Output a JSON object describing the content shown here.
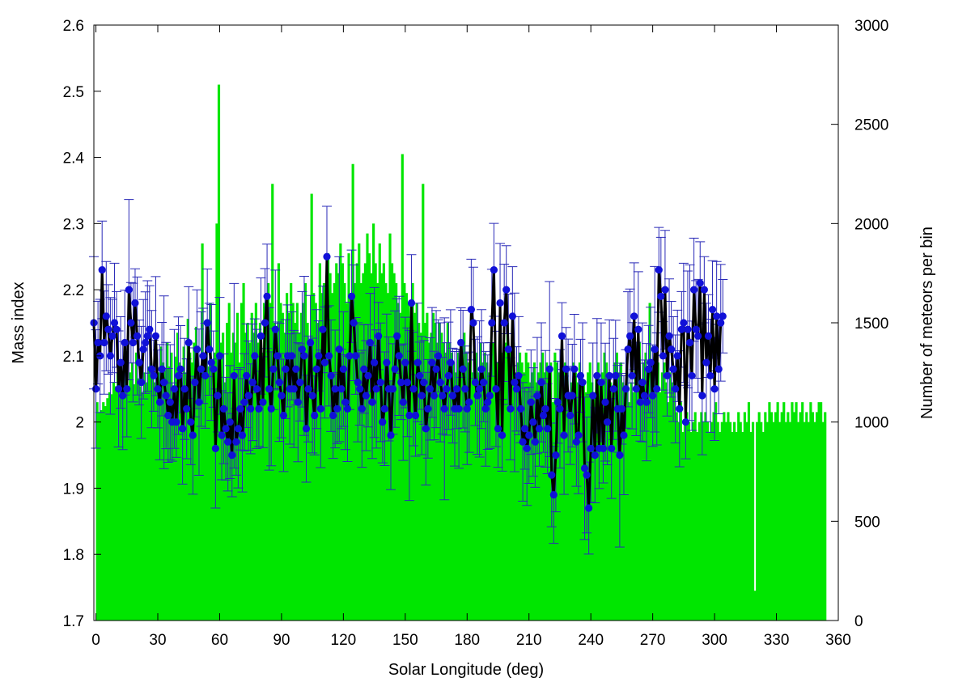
{
  "chart_data": {
    "type": "line",
    "xlabel": "Solar Longitude (deg)",
    "ylabel": "Mass index",
    "y2label": "Number of meteors per bin",
    "xlim": [
      -1,
      360
    ],
    "ylim": [
      1.7,
      2.6
    ],
    "y2lim": [
      0,
      3000
    ],
    "grid": false,
    "legend": "none",
    "xticks": [
      0,
      30,
      60,
      90,
      120,
      150,
      180,
      210,
      240,
      270,
      300,
      330,
      360
    ],
    "yticks": [
      1.7,
      1.8,
      1.9,
      2.0,
      2.1,
      2.2,
      2.3,
      2.4,
      2.5,
      2.6
    ],
    "y2ticks": [
      0,
      500,
      1000,
      1500,
      2000,
      2500,
      3000
    ],
    "colors": {
      "bars": "#00e600",
      "line": "#000000",
      "points": "#1010d8",
      "errorbars": "#2a2ab8"
    },
    "series": [
      {
        "type": "bar",
        "axis": "y2",
        "bin_width": 1,
        "x_start": 0,
        "values": [
          1100,
          1050,
          1060,
          1100,
          1080,
          1120,
          1150,
          1140,
          1200,
          1180,
          1250,
          1300,
          1160,
          1210,
          1290,
          1150,
          1250,
          1300,
          1190,
          1350,
          1220,
          1180,
          1150,
          1250,
          1200,
          1280,
          1300,
          1270,
          1200,
          1320,
          1250,
          1380,
          1300,
          1260,
          1400,
          1280,
          1350,
          1150,
          1330,
          1450,
          1300,
          1200,
          1380,
          1250,
          1520,
          1350,
          1300,
          1400,
          1480,
          1300,
          1250,
          1900,
          1330,
          1420,
          1280,
          1600,
          1300,
          1350,
          2000,
          2700,
          1400,
          1450,
          1200,
          1500,
          1600,
          1350,
          1450,
          1400,
          1550,
          1300,
          1600,
          1700,
          1450,
          1500,
          1400,
          1550,
          1450,
          1600,
          1400,
          1500,
          1350,
          1600,
          1500,
          1700,
          1600,
          2200,
          1500,
          1450,
          1800,
          1600,
          1550,
          1450,
          1650,
          1550,
          1700,
          1600,
          1500,
          1600,
          1450,
          1550,
          1600,
          1700,
          1500,
          1400,
          2150,
          1650,
          1600,
          1500,
          1800,
          1650,
          1700,
          1600,
          1850,
          1750,
          1650,
          1700,
          1800,
          1750,
          1900,
          1800,
          1700,
          1600,
          1850,
          1650,
          2300,
          1700,
          1800,
          1900,
          1700,
          1750,
          1800,
          1950,
          1850,
          1750,
          2000,
          1800,
          1700,
          1900,
          1750,
          1800,
          1700,
          1650,
          1950,
          1800,
          1750,
          1700,
          1600,
          1550,
          2350,
          1700,
          1650,
          1600,
          1500,
          1700,
          1550,
          1600,
          1500,
          1450,
          2200,
          1500,
          1550,
          1400,
          1450,
          1550,
          1500,
          1400,
          1500,
          1450,
          1400,
          1350,
          1500,
          1400,
          1350,
          1300,
          1250,
          1350,
          1300,
          1400,
          1450,
          1350,
          1300,
          1400,
          1250,
          1300,
          1350,
          1250,
          1400,
          1300,
          1350,
          1300,
          1250,
          1300,
          1400,
          1350,
          1300,
          1250,
          1350,
          1300,
          1400,
          1500,
          1350,
          1300,
          1400,
          1250,
          1300,
          1350,
          1300,
          1250,
          1350,
          1300,
          1200,
          1250,
          1300,
          1200,
          1250,
          1300,
          1350,
          1250,
          1300,
          1250,
          1300,
          1100,
          1350,
          1300,
          1250,
          1200,
          1250,
          1300,
          1250,
          1150,
          1200,
          1300,
          1250,
          1200,
          1300,
          1250,
          1200,
          1150,
          1250,
          1300,
          1200,
          1150,
          1250,
          1300,
          1200,
          1250,
          1350,
          1300,
          1250,
          1200,
          1100,
          1300,
          1350,
          1250,
          1300,
          1200,
          1150,
          1250,
          1100,
          1200,
          1150,
          1300,
          1350,
          1400,
          1200,
          1300,
          1350,
          1250,
          1600,
          1300,
          1250,
          1200,
          1300,
          1150,
          1250,
          1300,
          1200,
          1100,
          1250,
          1200,
          1150,
          1050,
          1000,
          1100,
          950,
          1000,
          1050,
          1000,
          950,
          1000,
          1050,
          950,
          1000,
          1050,
          1000,
          1050,
          1000,
          950,
          1000,
          1050,
          1100,
          1000,
          950,
          1000,
          1050,
          1000,
          1050,
          1000,
          950,
          1000,
          950,
          1050,
          1000,
          950,
          1050,
          1000,
          1100,
          950,
          1000,
          150,
          1000,
          1050,
          1000,
          950,
          1050,
          1000,
          1100,
          1050,
          1000,
          1050,
          1100,
          1000,
          1050,
          1100,
          1000,
          1050,
          1000,
          1100,
          1050,
          1100,
          1000,
          1050,
          1100,
          1000,
          1050,
          1000,
          1100,
          1050,
          1000,
          1050,
          1100,
          1100,
          1000,
          1050
        ]
      },
      {
        "type": "line",
        "axis": "y",
        "x_start": -1,
        "x_step": 1,
        "values": [
          2.15,
          2.05,
          2.12,
          2.1,
          2.23,
          2.12,
          2.16,
          2.14,
          2.1,
          2.13,
          2.15,
          2.14,
          2.05,
          2.09,
          2.04,
          2.12,
          2.05,
          2.2,
          2.15,
          2.12,
          2.18,
          2.13,
          2.09,
          2.06,
          2.11,
          2.12,
          2.13,
          2.14,
          2.08,
          2.07,
          2.13,
          2.05,
          2.03,
          2.08,
          2.06,
          2.04,
          2.01,
          2.03,
          2.0,
          2.05,
          2.0,
          2.07,
          2.08,
          1.99,
          2.05,
          2.02,
          2.12,
          2.0,
          1.98,
          2.06,
          2.11,
          2.03,
          2.08,
          2.1,
          2.07,
          2.15,
          2.11,
          2.09,
          2.08,
          1.96,
          2.04,
          2.1,
          1.98,
          2.02,
          1.99,
          1.97,
          2.0,
          1.95,
          2.07,
          1.97,
          1.99,
          2.02,
          1.98,
          2.03,
          2.07,
          2.04,
          2.02,
          2.06,
          2.1,
          2.05,
          2.02,
          2.13,
          2.03,
          2.15,
          2.19,
          2.05,
          2.02,
          2.08,
          2.14,
          2.1,
          2.06,
          2.04,
          2.01,
          2.08,
          2.1,
          2.05,
          2.1,
          2.05,
          2.08,
          2.03,
          2.06,
          2.11,
          2.1,
          1.99,
          2.05,
          2.12,
          2.04,
          2.01,
          2.08,
          2.1,
          2.02,
          2.14,
          2.09,
          2.25,
          2.1,
          2.07,
          2.01,
          2.05,
          2.02,
          2.11,
          2.05,
          2.08,
          2.03,
          2.02,
          2.1,
          2.19,
          2.15,
          2.1,
          2.06,
          2.05,
          2.02,
          2.08,
          2.04,
          2.07,
          2.12,
          2.03,
          2.09,
          2.05,
          2.13,
          2.06,
          2.0,
          2.02,
          2.09,
          2.05,
          1.98,
          2.05,
          2.08,
          2.13,
          2.1,
          2.06,
          2.03,
          2.09,
          2.06,
          2.01,
          2.18,
          2.05,
          2.01,
          2.09,
          2.07,
          2.04,
          2.06,
          1.99,
          2.02,
          2.05,
          2.09,
          2.04,
          2.08,
          2.1,
          2.06,
          2.04,
          2.02,
          2.05,
          2.07,
          2.09,
          2.04,
          2.02,
          2.05,
          2.02,
          2.12,
          2.08,
          2.05,
          2.02,
          2.03,
          2.17,
          2.15,
          2.06,
          2.04,
          2.05,
          2.08,
          2.06,
          2.02,
          2.03,
          2.04,
          2.15,
          2.23,
          2.05,
          1.99,
          2.18,
          1.98,
          2.15,
          2.2,
          2.11,
          2.02,
          2.16,
          2.06,
          2.05,
          2.07,
          2.02,
          1.97,
          1.99,
          1.96,
          1.98,
          2.03,
          2.0,
          1.97,
          2.04,
          1.99,
          2.06,
          2.01,
          2.02,
          1.99,
          2.08,
          1.92,
          1.89,
          1.95,
          2.03,
          2.02,
          2.13,
          1.98,
          2.08,
          2.04,
          2.01,
          2.04,
          2.08,
          1.97,
          1.98,
          2.07,
          2.06,
          1.93,
          1.92,
          1.87,
          1.96,
          2.04,
          1.95,
          2.07,
          1.96,
          2.06,
          1.96,
          2.03,
          2.0,
          2.07,
          1.96,
          2.05,
          2.07,
          2.02,
          1.95,
          2.02,
          1.98,
          2.05,
          2.11,
          2.13,
          2.07,
          2.16,
          2.05,
          2.14,
          2.03,
          2.06,
          2.04,
          2.03,
          2.08,
          2.09,
          2.04,
          2.11,
          2.05,
          2.23,
          2.19,
          2.1,
          2.2,
          2.07,
          2.13,
          2.11,
          2.08,
          2.05,
          2.1,
          2.02,
          2.14,
          2.15,
          2.0,
          2.14,
          2.12,
          2.07,
          2.2,
          2.14,
          2.13,
          2.21,
          2.04,
          2.2,
          2.09,
          2.13,
          2.07,
          2.17,
          2.05,
          2.16,
          2.08,
          2.15,
          2.16
        ]
      }
    ]
  }
}
